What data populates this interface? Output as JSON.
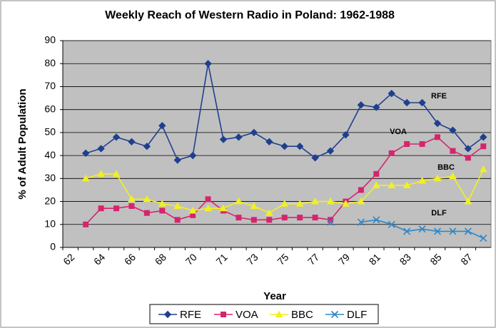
{
  "chart_data": {
    "type": "line",
    "title": "Weekly Reach of Western Radio in Poland: 1962-1988",
    "x_label": "Year",
    "y_label": "% of Adult Population",
    "categories": [
      "62",
      null,
      "64",
      null,
      "66",
      null,
      "68",
      null,
      "70",
      null,
      "71",
      null,
      "73",
      null,
      "75",
      null,
      "77",
      null,
      "79",
      null,
      "81",
      null,
      "83",
      null,
      "85",
      null,
      "87",
      null
    ],
    "series": [
      {
        "name": "RFE",
        "color": "#1f3f8f",
        "marker": "diamond",
        "values": [
          null,
          41,
          43,
          48,
          46,
          44,
          53,
          38,
          40,
          80,
          47,
          48,
          50,
          46,
          44,
          44,
          39,
          42,
          49,
          62,
          61,
          67,
          63,
          63,
          54,
          51,
          43,
          48
        ]
      },
      {
        "name": "VOA",
        "color": "#d6246e",
        "marker": "square",
        "values": [
          null,
          10,
          17,
          17,
          18,
          15,
          16,
          12,
          14,
          21,
          16,
          13,
          12,
          12,
          13,
          13,
          13,
          12,
          20,
          25,
          32,
          41,
          45,
          45,
          48,
          42,
          39,
          44
        ]
      },
      {
        "name": "BBC",
        "color": "#f2f020",
        "marker": "triangle",
        "values": [
          null,
          30,
          32,
          32,
          21,
          21,
          19,
          18,
          16,
          17,
          17,
          20,
          18,
          15,
          19,
          19,
          20,
          20,
          19,
          20,
          27,
          27,
          27,
          29,
          30,
          31,
          20,
          34
        ]
      },
      {
        "name": "DLF",
        "color": "#2e86c8",
        "marker": "x",
        "values": [
          null,
          null,
          null,
          null,
          null,
          null,
          null,
          null,
          null,
          null,
          null,
          null,
          null,
          null,
          null,
          null,
          null,
          11,
          null,
          11,
          12,
          10,
          7,
          8,
          7,
          7,
          7,
          4
        ]
      }
    ],
    "annotations": [
      "RFE",
      "VOA",
      "BBC",
      "DLF"
    ],
    "ylim": [
      0,
      90
    ],
    "yticks": [
      0,
      10,
      20,
      30,
      40,
      50,
      60,
      70,
      80,
      90
    ],
    "grid": true,
    "legend": "bottom"
  }
}
